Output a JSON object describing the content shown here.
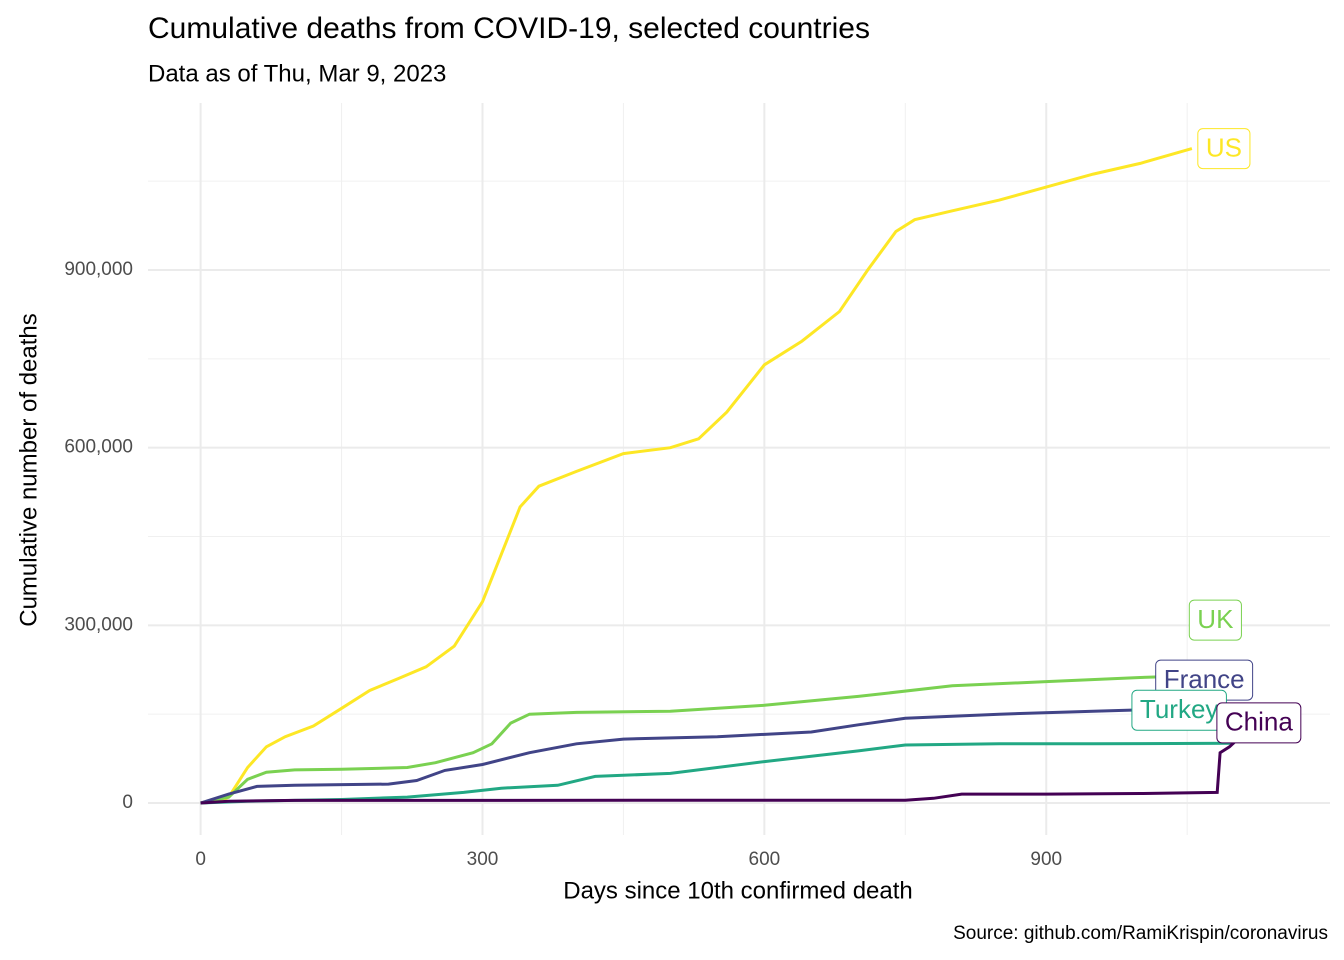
{
  "chart_data": {
    "type": "line",
    "title": "Cumulative deaths from COVID-19, selected countries",
    "subtitle": "Data as of Thu, Mar 9, 2023",
    "x_label": "Days since 10th confirmed death",
    "y_label": "Cumulative number of deaths",
    "caption": "Source: github.com/RamiKrispin/coronavirus",
    "xlim": [
      -56,
      1202
    ],
    "ylim": [
      -54000,
      1182000
    ],
    "xticks": [
      0,
      300,
      600,
      900
    ],
    "yticks": [
      0,
      {
        "value": 300000,
        "label": "300,000"
      },
      {
        "value": 600000,
        "label": "600,000"
      },
      {
        "value": 900000,
        "label": "900,000"
      }
    ],
    "x_minor_grid": [
      150,
      450,
      750,
      1050
    ],
    "y_minor_grid": [
      150000,
      450000,
      750000,
      1050000
    ],
    "grid": true,
    "series": [
      {
        "name": "US",
        "color": "#fde725",
        "x": [
          0,
          20,
          30,
          50,
          70,
          90,
          120,
          150,
          180,
          210,
          240,
          270,
          300,
          320,
          340,
          360,
          400,
          450,
          500,
          530,
          560,
          600,
          640,
          680,
          710,
          740,
          760,
          800,
          850,
          900,
          950,
          1000,
          1055
        ],
        "values": [
          0,
          2000,
          10000,
          60000,
          95000,
          112000,
          130000,
          160000,
          190000,
          210000,
          230000,
          265000,
          340000,
          420000,
          500000,
          535000,
          560000,
          590000,
          600000,
          615000,
          660000,
          740000,
          780000,
          830000,
          900000,
          965000,
          985000,
          1000000,
          1018000,
          1040000,
          1062000,
          1080000,
          1105000
        ]
      },
      {
        "name": "UK",
        "color": "#7ad151",
        "x": [
          0,
          30,
          50,
          70,
          100,
          150,
          220,
          250,
          290,
          310,
          330,
          350,
          400,
          500,
          600,
          700,
          800,
          900,
          1000,
          1080
        ],
        "values": [
          0,
          10000,
          40000,
          52000,
          56000,
          57000,
          60000,
          68000,
          85000,
          100000,
          135000,
          150000,
          153000,
          155000,
          165000,
          180000,
          198000,
          205000,
          212000,
          216000
        ]
      },
      {
        "name": "France",
        "color": "#414487",
        "x": [
          0,
          30,
          60,
          100,
          200,
          230,
          260,
          300,
          350,
          400,
          450,
          550,
          650,
          700,
          750,
          850,
          950,
          1100
        ],
        "values": [
          0,
          15000,
          28000,
          30000,
          32000,
          38000,
          55000,
          65000,
          85000,
          100000,
          108000,
          112000,
          120000,
          132000,
          143000,
          150000,
          155000,
          162000
        ]
      },
      {
        "name": "Turkey",
        "color": "#22a884",
        "x": [
          0,
          50,
          150,
          220,
          280,
          320,
          380,
          420,
          500,
          600,
          700,
          750,
          850,
          950,
          1100
        ],
        "values": [
          0,
          3000,
          6000,
          10000,
          18000,
          25000,
          30000,
          45000,
          50000,
          70000,
          88000,
          98000,
          100000,
          100000,
          101000
        ]
      },
      {
        "name": "China",
        "color": "#440154",
        "x": [
          0,
          30,
          100,
          750,
          780,
          810,
          900,
          1000,
          1082,
          1085,
          1095,
          1105
        ],
        "values": [
          0,
          3000,
          4500,
          4700,
          8000,
          15000,
          15000,
          16000,
          18000,
          85000,
          95000,
          110000
        ]
      }
    ]
  }
}
